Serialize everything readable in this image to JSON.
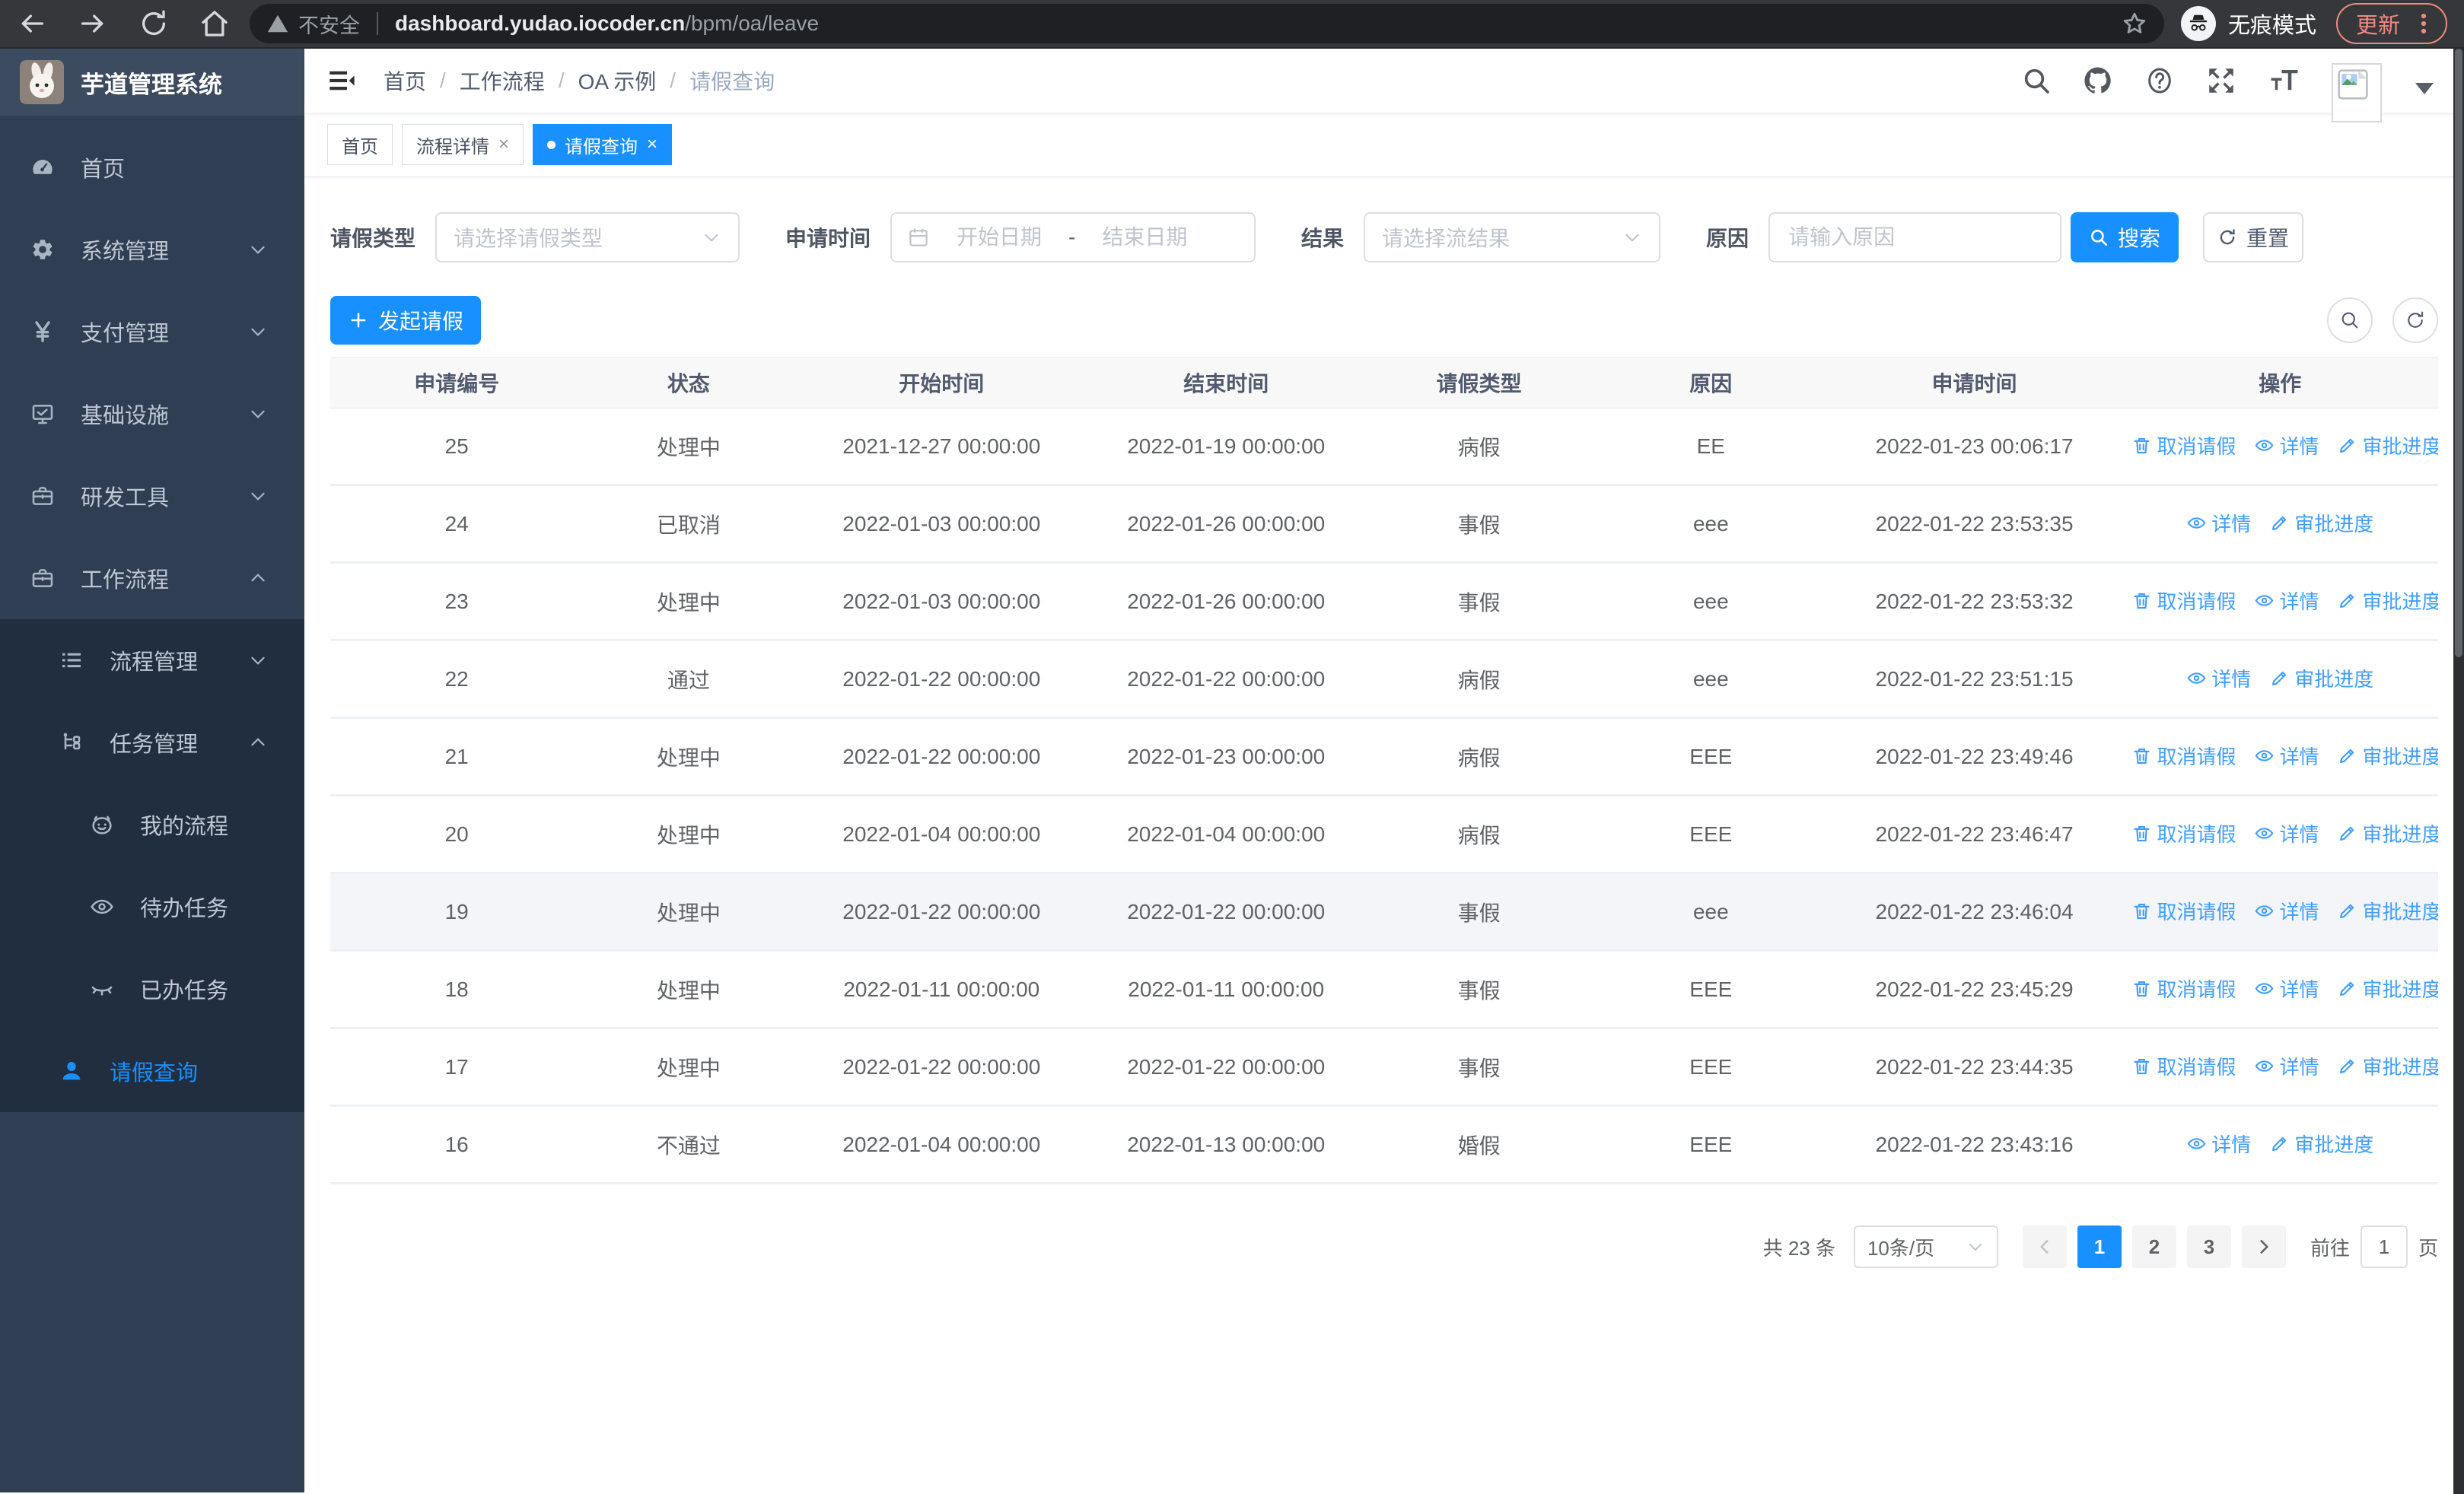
{
  "browser": {
    "security_label": "不安全",
    "url_host": "dashboard.yudao.iocoder.cn",
    "url_path": "/bpm/oa/leave",
    "incognito_label": "无痕模式",
    "update_label": "更新"
  },
  "sidebar": {
    "logo_title": "芋道管理系统",
    "items": [
      {
        "label": "首页",
        "icon": "dashboard-icon",
        "level": 1,
        "arrow": "none",
        "active": false
      },
      {
        "label": "系统管理",
        "icon": "gear-icon",
        "level": 1,
        "arrow": "down",
        "active": false
      },
      {
        "label": "支付管理",
        "icon": "yen-icon",
        "level": 1,
        "arrow": "down",
        "active": false
      },
      {
        "label": "基础设施",
        "icon": "monitor-icon",
        "level": 1,
        "arrow": "down",
        "active": false
      },
      {
        "label": "研发工具",
        "icon": "briefcase-icon",
        "level": 1,
        "arrow": "down",
        "active": false
      },
      {
        "label": "工作流程",
        "icon": "briefcase-icon",
        "level": 1,
        "arrow": "up",
        "active": false
      },
      {
        "label": "流程管理",
        "icon": "list-icon",
        "level": 2,
        "arrow": "down",
        "active": false
      },
      {
        "label": "任务管理",
        "icon": "tree-icon",
        "level": 2,
        "arrow": "up",
        "active": false
      },
      {
        "label": "我的流程",
        "icon": "robot-icon",
        "level": 3,
        "arrow": "none",
        "active": false
      },
      {
        "label": "待办任务",
        "icon": "eye-icon",
        "level": 3,
        "arrow": "none",
        "active": false
      },
      {
        "label": "已办任务",
        "icon": "eye-closed-icon",
        "level": 3,
        "arrow": "none",
        "active": false
      },
      {
        "label": "请假查询",
        "icon": "user-icon",
        "level": 2,
        "arrow": "none",
        "active": true
      }
    ]
  },
  "header": {
    "breadcrumb": [
      "首页",
      "工作流程",
      "OA 示例",
      "请假查询"
    ]
  },
  "tabs": [
    {
      "label": "首页"
    },
    {
      "label": "流程详情"
    },
    {
      "label": "请假查询"
    }
  ],
  "filters": {
    "leave_type": {
      "label": "请假类型",
      "placeholder": "请选择请假类型"
    },
    "apply_time": {
      "label": "申请时间",
      "start_placeholder": "开始日期",
      "separator": "-",
      "end_placeholder": "结束日期"
    },
    "result": {
      "label": "结果",
      "placeholder": "请选择流结果"
    },
    "reason": {
      "label": "原因",
      "placeholder": "请输入原因"
    },
    "search_label": "搜索",
    "reset_label": "重置"
  },
  "toolbar": {
    "create_label": "发起请假"
  },
  "table": {
    "columns": [
      "申请编号",
      "状态",
      "开始时间",
      "结束时间",
      "请假类型",
      "原因",
      "申请时间",
      "操作"
    ],
    "action_labels": {
      "cancel": "取消请假",
      "detail": "详情",
      "progress": "审批进度"
    },
    "rows": [
      {
        "id": "25",
        "status": "处理中",
        "start": "2021-12-27 00:00:00",
        "end": "2022-01-19 00:00:00",
        "type": "病假",
        "reason": "EE",
        "apply_time": "2022-01-23 00:06:17",
        "actions": [
          "cancel",
          "detail",
          "progress"
        ],
        "hover": false
      },
      {
        "id": "24",
        "status": "已取消",
        "start": "2022-01-03 00:00:00",
        "end": "2022-01-26 00:00:00",
        "type": "事假",
        "reason": "eee",
        "apply_time": "2022-01-22 23:53:35",
        "actions": [
          "detail",
          "progress"
        ],
        "hover": false
      },
      {
        "id": "23",
        "status": "处理中",
        "start": "2022-01-03 00:00:00",
        "end": "2022-01-26 00:00:00",
        "type": "事假",
        "reason": "eee",
        "apply_time": "2022-01-22 23:53:32",
        "actions": [
          "cancel",
          "detail",
          "progress"
        ],
        "hover": false
      },
      {
        "id": "22",
        "status": "通过",
        "start": "2022-01-22 00:00:00",
        "end": "2022-01-22 00:00:00",
        "type": "病假",
        "reason": "eee",
        "apply_time": "2022-01-22 23:51:15",
        "actions": [
          "detail",
          "progress"
        ],
        "hover": false
      },
      {
        "id": "21",
        "status": "处理中",
        "start": "2022-01-22 00:00:00",
        "end": "2022-01-23 00:00:00",
        "type": "病假",
        "reason": "EEE",
        "apply_time": "2022-01-22 23:49:46",
        "actions": [
          "cancel",
          "detail",
          "progress"
        ],
        "hover": false
      },
      {
        "id": "20",
        "status": "处理中",
        "start": "2022-01-04 00:00:00",
        "end": "2022-01-04 00:00:00",
        "type": "病假",
        "reason": "EEE",
        "apply_time": "2022-01-22 23:46:47",
        "actions": [
          "cancel",
          "detail",
          "progress"
        ],
        "hover": false
      },
      {
        "id": "19",
        "status": "处理中",
        "start": "2022-01-22 00:00:00",
        "end": "2022-01-22 00:00:00",
        "type": "事假",
        "reason": "eee",
        "apply_time": "2022-01-22 23:46:04",
        "actions": [
          "cancel",
          "detail",
          "progress"
        ],
        "hover": true
      },
      {
        "id": "18",
        "status": "处理中",
        "start": "2022-01-11 00:00:00",
        "end": "2022-01-11 00:00:00",
        "type": "事假",
        "reason": "EEE",
        "apply_time": "2022-01-22 23:45:29",
        "actions": [
          "cancel",
          "detail",
          "progress"
        ],
        "hover": false
      },
      {
        "id": "17",
        "status": "处理中",
        "start": "2022-01-22 00:00:00",
        "end": "2022-01-22 00:00:00",
        "type": "事假",
        "reason": "EEE",
        "apply_time": "2022-01-22 23:44:35",
        "actions": [
          "cancel",
          "detail",
          "progress"
        ],
        "hover": false
      },
      {
        "id": "16",
        "status": "不通过",
        "start": "2022-01-04 00:00:00",
        "end": "2022-01-13 00:00:00",
        "type": "婚假",
        "reason": "EEE",
        "apply_time": "2022-01-22 23:43:16",
        "actions": [
          "detail",
          "progress"
        ],
        "hover": false
      }
    ]
  },
  "pagination": {
    "total_label": "共 23 条",
    "page_size_label": "10条/页",
    "pages": [
      "1",
      "2",
      "3"
    ],
    "active_page": "1",
    "goto_label": "前往",
    "goto_value": "1",
    "goto_suffix": "页"
  },
  "colors": {
    "primary": "#1890ff",
    "link": "#409eff",
    "update_accent": "#ee8b80"
  }
}
